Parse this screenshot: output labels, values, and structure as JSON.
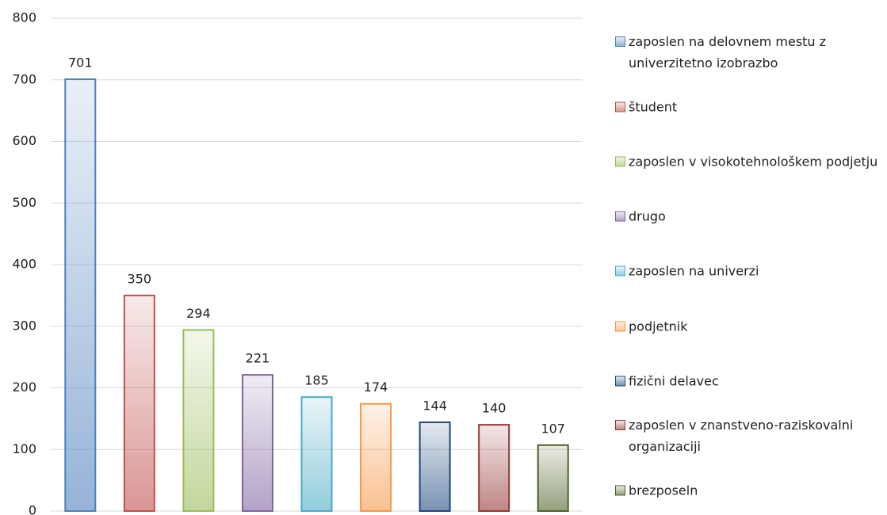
{
  "chart_data": {
    "type": "bar",
    "series": [
      {
        "name": "zaposlen na delovnem mestu z univerzitetno izobrazbo",
        "color": "#4f81bd",
        "values": [
          701
        ]
      },
      {
        "name": "študent",
        "color": "#c0504d",
        "values": [
          350
        ]
      },
      {
        "name": "zaposlen v visokotehnološkem podjetju",
        "color": "#9bbb59",
        "values": [
          294
        ]
      },
      {
        "name": "drugo",
        "color": "#8064a2",
        "values": [
          221
        ]
      },
      {
        "name": "zaposlen na univerzi",
        "color": "#4bacc6",
        "values": [
          185
        ]
      },
      {
        "name": "podjetnik",
        "color": "#f79646",
        "values": [
          174
        ]
      },
      {
        "name": "fizični delavec",
        "color": "#1f497d",
        "values": [
          144
        ]
      },
      {
        "name": "zaposlen v znanstveno-raziskovalni organizaciji",
        "color": "#943634",
        "values": [
          140
        ]
      },
      {
        "name": "brezposeln",
        "color": "#4f6228",
        "values": [
          107
        ]
      }
    ],
    "ylim": [
      0,
      800
    ],
    "yticks": [
      0,
      100,
      200,
      300,
      400,
      500,
      600,
      700,
      800
    ],
    "grid": true,
    "legend": "right"
  }
}
